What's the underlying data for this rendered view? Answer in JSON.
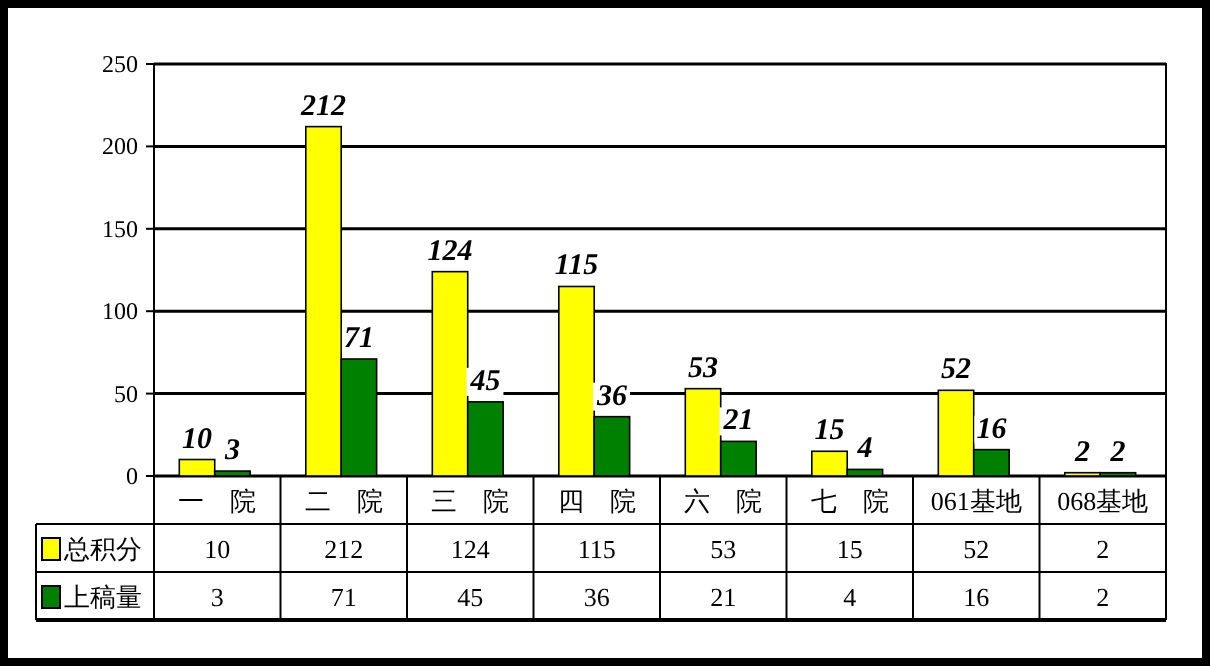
{
  "chart_data": {
    "type": "bar",
    "categories": [
      "一　院",
      "二　院",
      "三　院",
      "四　院",
      "六　院",
      "七　院",
      "061基地",
      "068基地"
    ],
    "series": [
      {
        "name": "总积分",
        "color": "#ffff00",
        "values": [
          10,
          212,
          124,
          115,
          53,
          15,
          52,
          2
        ],
        "value_labels": [
          "10",
          "212",
          "124",
          "115",
          "53",
          "15",
          "52",
          "2"
        ]
      },
      {
        "name": "上稿量",
        "color": "#008000",
        "values": [
          3,
          71,
          45,
          36,
          21,
          4,
          16,
          2
        ],
        "value_labels": [
          "3",
          "71",
          "45",
          "36",
          "21",
          "4",
          "16",
          "2"
        ]
      }
    ],
    "annotations": [
      {
        "text": "10",
        "x": "一　院",
        "y": 10
      },
      {
        "text": "212",
        "x": "二　院",
        "y": 212
      },
      {
        "text": "124",
        "x": "三　院",
        "y": 124
      },
      {
        "text": "115",
        "x": "四　院",
        "y": 115
      },
      {
        "text": "53",
        "x": "六　院",
        "y": 53
      },
      {
        "text": "15",
        "x": "七　院",
        "y": 15
      },
      {
        "text": "52",
        "x": "061基地",
        "y": 52
      },
      {
        "text": "2",
        "x": "068基地",
        "y": 2
      },
      {
        "text": "3",
        "x": "一　院",
        "y": 3
      },
      {
        "text": "71",
        "x": "二　院",
        "y": 71
      },
      {
        "text": "45",
        "x": "三　院",
        "y": 45
      },
      {
        "text": "36",
        "x": "四　院",
        "y": 36
      },
      {
        "text": "21",
        "x": "六　院",
        "y": 21
      },
      {
        "text": "4",
        "x": "七　院",
        "y": 4
      },
      {
        "text": "16",
        "x": "061基地",
        "y": 16
      },
      {
        "text": "2",
        "x": "068基地",
        "y": 2
      }
    ],
    "ylim": [
      0,
      250
    ],
    "yticks": [
      0,
      50,
      100,
      150,
      200,
      250
    ],
    "grid": "y",
    "legend": "bottom left"
  }
}
